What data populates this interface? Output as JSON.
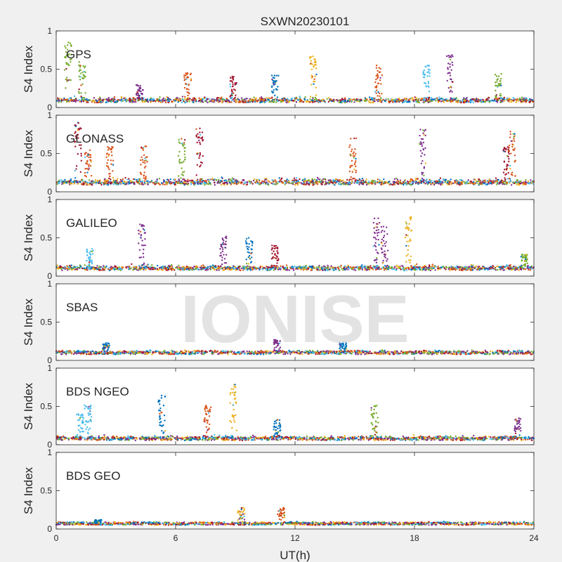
{
  "figure": {
    "title": "SXWN20230101",
    "xlabel": "UT(h)",
    "watermark": "IONISE"
  },
  "chart_data": {
    "type": "scatter",
    "title": "SXWN20230101",
    "xlabel": "UT(h)",
    "ylabel": "S4 Index",
    "xlim": [
      0,
      24
    ],
    "ylim": [
      0,
      1
    ],
    "xticks": [
      0,
      6,
      12,
      18,
      24
    ],
    "xtick_labels": [
      "0",
      "6",
      "12",
      "18",
      "24"
    ],
    "yticks": [
      0,
      0.5,
      1
    ],
    "ytick_labels": [
      "0",
      "0.5",
      "1"
    ],
    "grid": false,
    "colors": [
      "#0072BD",
      "#D95319",
      "#EDB120",
      "#7E2F8E",
      "#77AC30",
      "#4DBEEE",
      "#A2142F"
    ],
    "panels": [
      {
        "system": "GPS",
        "baseline": 0.09,
        "noise": 0.05,
        "spikes": [
          {
            "t": 0.6,
            "peak": 0.85,
            "color": 4
          },
          {
            "t": 1.3,
            "peak": 0.6,
            "color": 4
          },
          {
            "t": 4.2,
            "peak": 0.3,
            "color": 3
          },
          {
            "t": 6.6,
            "peak": 0.45,
            "color": 1
          },
          {
            "t": 8.9,
            "peak": 0.42,
            "color": 6
          },
          {
            "t": 11.0,
            "peak": 0.42,
            "color": 0
          },
          {
            "t": 12.9,
            "peak": 0.68,
            "color": 2
          },
          {
            "t": 16.2,
            "peak": 0.55,
            "color": 1
          },
          {
            "t": 18.6,
            "peak": 0.55,
            "color": 5
          },
          {
            "t": 19.8,
            "peak": 0.7,
            "color": 3
          },
          {
            "t": 22.2,
            "peak": 0.45,
            "color": 4
          }
        ]
      },
      {
        "system": "GLONASS",
        "baseline": 0.12,
        "noise": 0.07,
        "spikes": [
          {
            "t": 1.1,
            "peak": 0.92,
            "color": 6
          },
          {
            "t": 1.6,
            "peak": 0.55,
            "color": 1
          },
          {
            "t": 2.7,
            "peak": 0.6,
            "color": 1
          },
          {
            "t": 4.4,
            "peak": 0.6,
            "color": 1
          },
          {
            "t": 6.3,
            "peak": 0.7,
            "color": 4
          },
          {
            "t": 7.2,
            "peak": 0.85,
            "color": 6
          },
          {
            "t": 14.9,
            "peak": 0.7,
            "color": 1
          },
          {
            "t": 18.4,
            "peak": 0.82,
            "color": 3
          },
          {
            "t": 22.6,
            "peak": 0.6,
            "color": 6
          },
          {
            "t": 22.9,
            "peak": 0.8,
            "color": 1
          }
        ]
      },
      {
        "system": "GALILEO",
        "baseline": 0.1,
        "noise": 0.05,
        "spikes": [
          {
            "t": 1.7,
            "peak": 0.36,
            "color": 5
          },
          {
            "t": 4.3,
            "peak": 0.68,
            "color": 3
          },
          {
            "t": 8.4,
            "peak": 0.52,
            "color": 3
          },
          {
            "t": 9.7,
            "peak": 0.5,
            "color": 0
          },
          {
            "t": 11.0,
            "peak": 0.4,
            "color": 6
          },
          {
            "t": 16.1,
            "peak": 0.76,
            "color": 3
          },
          {
            "t": 16.5,
            "peak": 0.65,
            "color": 3
          },
          {
            "t": 17.7,
            "peak": 0.78,
            "color": 2
          },
          {
            "t": 23.5,
            "peak": 0.3,
            "color": 4
          }
        ]
      },
      {
        "system": "SBAS",
        "baseline": 0.1,
        "noise": 0.03,
        "spikes": [
          {
            "t": 2.5,
            "peak": 0.24,
            "color": 0
          },
          {
            "t": 11.1,
            "peak": 0.27,
            "color": 3
          },
          {
            "t": 14.4,
            "peak": 0.24,
            "color": 0
          }
        ]
      },
      {
        "system": "BDS NGEO",
        "baseline": 0.08,
        "noise": 0.04,
        "spikes": [
          {
            "t": 1.2,
            "peak": 0.4,
            "color": 5
          },
          {
            "t": 1.6,
            "peak": 0.55,
            "color": 5
          },
          {
            "t": 5.3,
            "peak": 0.65,
            "color": 0
          },
          {
            "t": 7.6,
            "peak": 0.52,
            "color": 1
          },
          {
            "t": 8.9,
            "peak": 0.8,
            "color": 2
          },
          {
            "t": 11.1,
            "peak": 0.33,
            "color": 0
          },
          {
            "t": 16.0,
            "peak": 0.52,
            "color": 4
          },
          {
            "t": 23.2,
            "peak": 0.35,
            "color": 3
          }
        ]
      },
      {
        "system": "BDS GEO",
        "baseline": 0.07,
        "noise": 0.015,
        "spikes": [
          {
            "t": 2.1,
            "peak": 0.12,
            "color": 0
          },
          {
            "t": 9.3,
            "peak": 0.28,
            "color": 2
          },
          {
            "t": 11.3,
            "peak": 0.28,
            "color": 1
          }
        ]
      }
    ]
  }
}
